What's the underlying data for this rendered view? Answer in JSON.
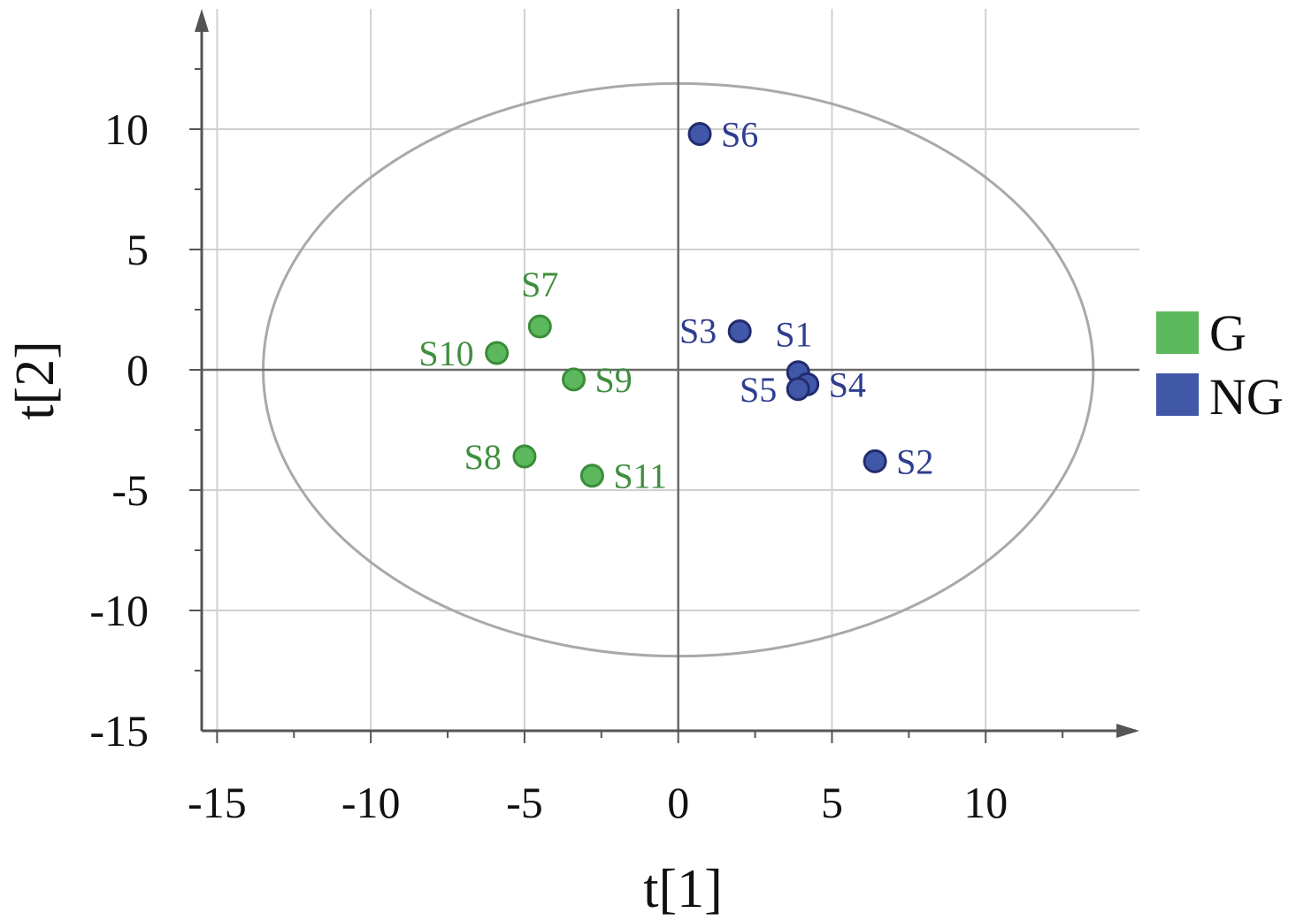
{
  "chart_data": {
    "type": "scatter",
    "xlabel": "t[1]",
    "ylabel": "t[2]",
    "xlim": [
      -15.5,
      15
    ],
    "ylim": [
      -15,
      15
    ],
    "xticks": [
      -15,
      -10,
      -5,
      0,
      5,
      10
    ],
    "yticks": [
      -15,
      -10,
      -5,
      0,
      5,
      10
    ],
    "xtick_labels": [
      "-15",
      "-10",
      "-5",
      "0",
      "5",
      "10"
    ],
    "ytick_labels": [
      "-15",
      "-10",
      "-5",
      "0",
      "5",
      "10"
    ],
    "grid": true,
    "legend_position": "right",
    "confidence_ellipse": {
      "center": [
        0,
        0
      ],
      "x_radius": 13.5,
      "y_radius": 11.9
    },
    "series": [
      {
        "name": "G",
        "color": "#5cb85c",
        "edge": "#3a8c3a",
        "points": [
          {
            "label": "S7",
            "x": -4.5,
            "y": 1.8
          },
          {
            "label": "S8",
            "x": -5.0,
            "y": -3.6
          },
          {
            "label": "S9",
            "x": -3.4,
            "y": -0.4
          },
          {
            "label": "S10",
            "x": -5.9,
            "y": 0.7
          },
          {
            "label": "S11",
            "x": -2.8,
            "y": -4.4
          }
        ]
      },
      {
        "name": "NG",
        "color": "#4157a8",
        "edge": "#222c6e",
        "points": [
          {
            "label": "S1",
            "x": 3.9,
            "y": -0.1
          },
          {
            "label": "S2",
            "x": 6.4,
            "y": -3.8
          },
          {
            "label": "S3",
            "x": 2.0,
            "y": 1.6
          },
          {
            "label": "S4",
            "x": 4.2,
            "y": -0.6
          },
          {
            "label": "S5",
            "x": 3.9,
            "y": -0.8
          },
          {
            "label": "S6",
            "x": 0.7,
            "y": 9.8
          }
        ]
      }
    ]
  }
}
